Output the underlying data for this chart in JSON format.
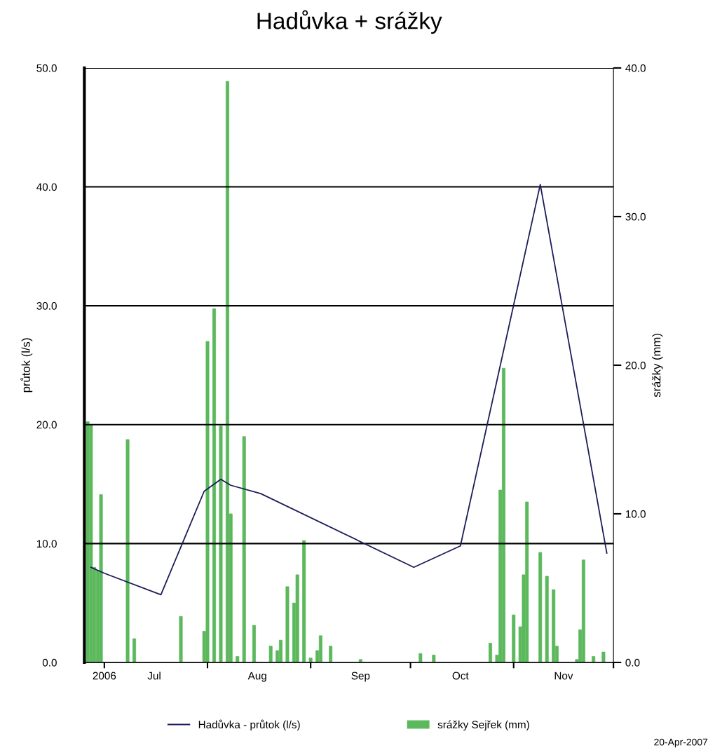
{
  "chart_data": {
    "type": "bar",
    "title": "Hadůvka + srážky",
    "ylabel": "průtok (l/s)",
    "y2label": "srážky (mm)",
    "xlim": [
      "2006-06-25",
      "2006-12-01"
    ],
    "xticks": [
      {
        "value": "2006-07-01",
        "label": "2006"
      },
      {
        "value": "2006-07-16",
        "label": "Jul"
      },
      {
        "value": "2006-08-01",
        "label": null
      },
      {
        "value": "2006-08-16",
        "label": "Aug"
      },
      {
        "value": "2006-09-01",
        "label": null
      },
      {
        "value": "2006-09-16",
        "label": "Sep"
      },
      {
        "value": "2006-10-01",
        "label": null
      },
      {
        "value": "2006-10-16",
        "label": "Oct"
      },
      {
        "value": "2006-11-01",
        "label": null
      },
      {
        "value": "2006-11-16",
        "label": "Nov"
      },
      {
        "value": "2006-12-01",
        "label": null
      }
    ],
    "ylim": [
      0,
      50
    ],
    "yticks": [
      {
        "value": 0,
        "label": "0.0"
      },
      {
        "value": 10,
        "label": "10.0"
      },
      {
        "value": 20,
        "label": "20.0"
      },
      {
        "value": 30,
        "label": "30.0"
      },
      {
        "value": 40,
        "label": "40.0"
      },
      {
        "value": 50,
        "label": "50.0"
      }
    ],
    "y2lim": [
      0,
      40
    ],
    "y2ticks": [
      {
        "value": 0,
        "label": "0.0"
      },
      {
        "value": 10,
        "label": "10.0"
      },
      {
        "value": 20,
        "label": "20.0"
      },
      {
        "value": 30,
        "label": "30.0"
      },
      {
        "value": 40,
        "label": "40.0"
      }
    ],
    "grid": "y",
    "legend": "bottom",
    "series": [
      {
        "name": "Hadůvka - průtok (l/s)",
        "type": "line",
        "axis": "y",
        "color": "#1c1c5a",
        "line_style": "solid",
        "marker": "none",
        "x": [
          "2006-06-27",
          "2006-07-01",
          "2006-07-18",
          "2006-07-31",
          "2006-08-05",
          "2006-08-08",
          "2006-08-17",
          "2006-10-02",
          "2006-10-16",
          "2006-11-09",
          "2006-11-29"
        ],
        "values": [
          8.0,
          7.5,
          5.7,
          14.4,
          15.4,
          14.9,
          14.2,
          8.0,
          9.8,
          40.2,
          9.2
        ]
      },
      {
        "name": "srážky Sejřek (mm)",
        "axis": "y2",
        "color": "#5cb85c",
        "x": [
          "2006-06-26",
          "2006-06-27",
          "2006-06-28",
          "2006-06-29",
          "2006-06-30",
          "2006-07-08",
          "2006-07-10",
          "2006-07-24",
          "2006-07-31",
          "2006-08-01",
          "2006-08-03",
          "2006-08-05",
          "2006-08-07",
          "2006-08-08",
          "2006-08-10",
          "2006-08-12",
          "2006-08-15",
          "2006-08-20",
          "2006-08-22",
          "2006-08-23",
          "2006-08-25",
          "2006-08-27",
          "2006-08-28",
          "2006-08-30",
          "2006-09-01",
          "2006-09-03",
          "2006-09-04",
          "2006-09-07",
          "2006-09-16",
          "2006-10-04",
          "2006-10-08",
          "2006-10-25",
          "2006-10-27",
          "2006-10-28",
          "2006-10-29",
          "2006-11-01",
          "2006-11-03",
          "2006-11-04",
          "2006-11-05",
          "2006-11-09",
          "2006-11-11",
          "2006-11-13",
          "2006-11-14",
          "2006-11-20",
          "2006-11-21",
          "2006-11-22",
          "2006-11-25",
          "2006-11-28"
        ],
        "values": [
          16.2,
          16.0,
          6.4,
          6.2,
          11.3,
          15.0,
          1.6,
          3.1,
          2.1,
          21.6,
          23.8,
          15.9,
          39.1,
          10.0,
          0.4,
          15.2,
          2.5,
          1.1,
          0.8,
          1.5,
          5.1,
          4.0,
          5.9,
          8.2,
          0.3,
          0.8,
          1.8,
          1.1,
          0.2,
          0.6,
          0.5,
          1.3,
          0.5,
          11.6,
          19.8,
          3.2,
          2.4,
          5.9,
          10.8,
          7.4,
          5.8,
          4.9,
          1.1,
          0.2,
          2.2,
          6.9,
          0.4,
          0.7
        ]
      }
    ],
    "annotations": [
      "20-Apr-2007"
    ]
  }
}
